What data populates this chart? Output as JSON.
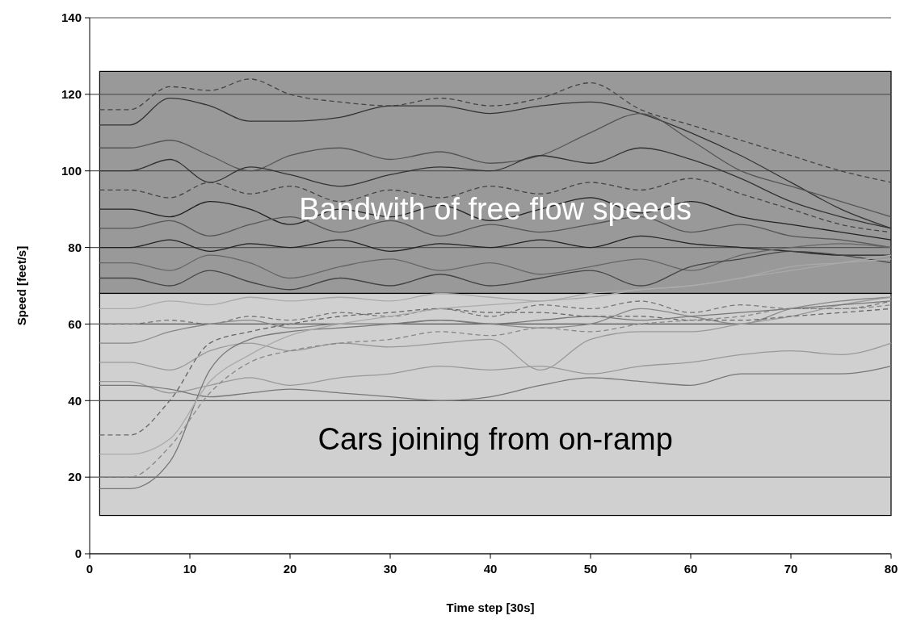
{
  "chart_data": {
    "type": "line",
    "xlabel": "Time step [30s]",
    "ylabel": "Speed [feet/s]",
    "xlim": [
      0,
      80
    ],
    "xticks": [
      0,
      10,
      20,
      30,
      40,
      50,
      60,
      70,
      80
    ],
    "ylim": [
      0,
      140
    ],
    "yticks": [
      0,
      20,
      40,
      60,
      80,
      100,
      120,
      140
    ],
    "grid": "y",
    "marker": "none",
    "line_style": "solid",
    "bands": [
      {
        "axis": "y",
        "from": 68,
        "to": 126,
        "label": "Bandwith of free flow speeds",
        "color": "#999999"
      },
      {
        "axis": "y",
        "from": 10,
        "to": 68,
        "label": "Cars joining from on-ramp",
        "color": "#d0d0d0"
      }
    ],
    "x": [
      1,
      4,
      8,
      12,
      16,
      20,
      25,
      30,
      35,
      40,
      45,
      50,
      55,
      60,
      65,
      70,
      75,
      80
    ],
    "series": [
      {
        "color": "#444444",
        "line_style": "dashed",
        "values": [
          116,
          116,
          122,
          121,
          124,
          120,
          118,
          117,
          119,
          117,
          119,
          123,
          116,
          112,
          108,
          104,
          100,
          97
        ]
      },
      {
        "color": "#333333",
        "values": [
          112,
          112,
          119,
          117,
          113,
          113,
          114,
          117,
          117,
          115,
          117,
          118,
          115,
          110,
          104,
          97,
          90,
          85
        ]
      },
      {
        "color": "#555555",
        "values": [
          106,
          106,
          108,
          104,
          100,
          104,
          106,
          103,
          105,
          102,
          104,
          110,
          115,
          108,
          100,
          96,
          92,
          88
        ]
      },
      {
        "color": "#333333",
        "values": [
          100,
          100,
          103,
          97,
          101,
          99,
          96,
          99,
          101,
          100,
          104,
          102,
          106,
          103,
          98,
          92,
          88,
          85
        ]
      },
      {
        "color": "#444444",
        "line_style": "dashed",
        "values": [
          95,
          95,
          93,
          97,
          94,
          96,
          92,
          95,
          93,
          96,
          94,
          97,
          95,
          98,
          94,
          90,
          86,
          84
        ]
      },
      {
        "color": "#222222",
        "values": [
          90,
          90,
          88,
          92,
          90,
          86,
          90,
          88,
          91,
          87,
          90,
          93,
          89,
          92,
          88,
          86,
          84,
          82
        ]
      },
      {
        "color": "#555555",
        "values": [
          85,
          85,
          87,
          83,
          86,
          88,
          84,
          87,
          83,
          86,
          84,
          86,
          88,
          84,
          86,
          83,
          82,
          80
        ]
      },
      {
        "color": "#222222",
        "values": [
          80,
          80,
          82,
          79,
          81,
          80,
          82,
          79,
          81,
          80,
          82,
          80,
          83,
          81,
          80,
          79,
          78,
          78
        ]
      },
      {
        "color": "#666666",
        "values": [
          76,
          76,
          74,
          78,
          76,
          72,
          75,
          77,
          74,
          76,
          73,
          75,
          77,
          74,
          78,
          80,
          81,
          80
        ]
      },
      {
        "color": "#444444",
        "values": [
          72,
          72,
          70,
          74,
          71,
          69,
          72,
          70,
          73,
          70,
          72,
          74,
          70,
          75,
          77,
          79,
          78,
          76
        ]
      },
      {
        "color": "#aaaaaa",
        "values": [
          64,
          64,
          66,
          65,
          67,
          66,
          67,
          66,
          68,
          67,
          66,
          68,
          69,
          70,
          72,
          75,
          76,
          77
        ]
      },
      {
        "color": "#777777",
        "line_style": "dashed",
        "values": [
          60,
          60,
          61,
          60,
          62,
          61,
          63,
          62,
          64,
          62,
          65,
          64,
          66,
          63,
          65,
          64,
          64,
          66
        ]
      },
      {
        "color": "#888888",
        "values": [
          55,
          55,
          58,
          60,
          61,
          59,
          60,
          60,
          61,
          60,
          59,
          60,
          64,
          62,
          60,
          64,
          66,
          67
        ]
      },
      {
        "color": "#999999",
        "values": [
          50,
          50,
          48,
          53,
          55,
          53,
          55,
          54,
          55,
          56,
          48,
          56,
          58,
          58,
          60,
          62,
          65,
          67
        ]
      },
      {
        "color": "#999999",
        "values": [
          45,
          45,
          42,
          44,
          46,
          44,
          46,
          47,
          49,
          48,
          49,
          47,
          49,
          50,
          52,
          53,
          52,
          55
        ]
      },
      {
        "color": "#777777",
        "values": [
          44,
          44,
          43,
          41,
          42,
          43,
          42,
          41,
          40,
          41,
          44,
          46,
          45,
          44,
          47,
          47,
          47,
          49
        ]
      },
      {
        "color": "#666666",
        "line_style": "dashed",
        "values": [
          31,
          31,
          40,
          55,
          58,
          60,
          62,
          63,
          64,
          63,
          63,
          62,
          62,
          61,
          61,
          62,
          63,
          64
        ]
      },
      {
        "color": "#777777",
        "values": [
          17,
          17,
          24,
          48,
          56,
          58,
          59,
          60,
          61,
          60,
          61,
          62,
          61,
          62,
          63,
          64,
          65,
          66
        ]
      },
      {
        "color": "#aaaaaa",
        "values": [
          26,
          26,
          30,
          45,
          52,
          57,
          60,
          62,
          64,
          65,
          66,
          67,
          69,
          70,
          72,
          74,
          76,
          78
        ]
      },
      {
        "color": "#888888",
        "line_style": "dashed",
        "values": [
          20,
          20,
          28,
          42,
          50,
          53,
          55,
          56,
          58,
          57,
          59,
          58,
          60,
          61,
          62,
          64,
          64,
          65
        ]
      }
    ]
  }
}
